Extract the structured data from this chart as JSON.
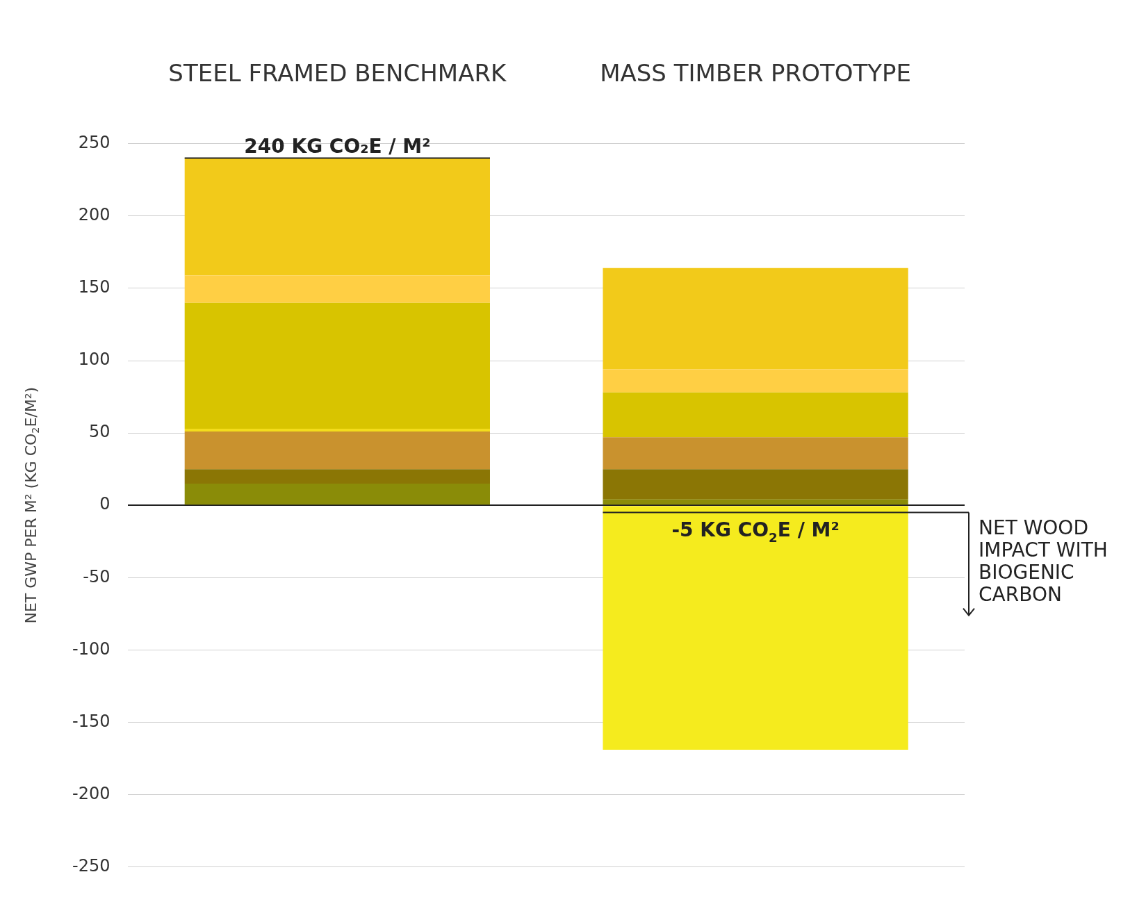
{
  "chart_data": {
    "type": "bar",
    "stacked": true,
    "categories": [
      "STEEL FRAMED BENCHMARK",
      "MASS TIMBER PROTOTYPE"
    ],
    "series": [
      {
        "color": "#8a8c08",
        "values": [
          15,
          4
        ]
      },
      {
        "color": "#8b7605",
        "values": [
          10,
          21
        ]
      },
      {
        "color": "#c9922e",
        "values": [
          26,
          22
        ]
      },
      {
        "color": "#f3dc1c",
        "values": [
          2,
          0
        ]
      },
      {
        "color": "#d8c400",
        "values": [
          87,
          31
        ]
      },
      {
        "color": "#ffcf44",
        "values": [
          19,
          16
        ]
      },
      {
        "color": "#f2ca1a",
        "values": [
          81,
          70
        ]
      },
      {
        "color": "#f5eb1e",
        "values": [
          null,
          -169
        ]
      }
    ],
    "ylabel": "NET GWP PER M² (KG CO$_{2}$E/M²)",
    "ylim": [
      -250,
      250
    ],
    "yticks": [
      -250,
      -200,
      -150,
      -100,
      -50,
      0,
      50,
      100,
      150,
      200,
      250
    ],
    "grid": "y",
    "legend": false,
    "annotations": [
      {
        "text": "240 KG CO₂E / M²",
        "x": "STEEL FRAMED BENCHMARK",
        "y": 240
      },
      "NET WOOD IMPACT WITH BIOGENIC CARBON"
    ],
    "ref_lines": [
      {
        "axis": "y",
        "value": -5,
        "label": "-5 KG CO$_{2}$E / M²"
      }
    ]
  }
}
